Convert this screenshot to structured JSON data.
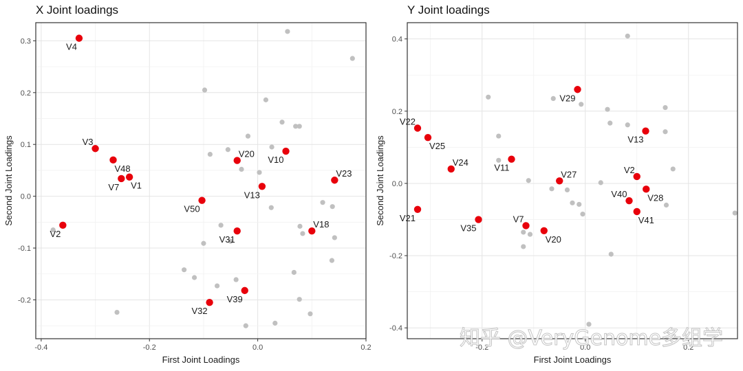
{
  "watermark": "知乎 @VeryGenome多组学",
  "chart_data": [
    {
      "type": "scatter",
      "title": "X Joint loadings",
      "xlabel": "First Joint Loadings",
      "ylabel": "Second Joint Loadings",
      "xlim": [
        -0.41,
        0.2
      ],
      "ylim": [
        -0.275,
        0.335
      ],
      "xticks": [
        -0.4,
        -0.2,
        0.0,
        0.2
      ],
      "xtick_labels": [
        "-0.4",
        "-0.2",
        "0.0",
        "0.2"
      ],
      "yticks": [
        -0.2,
        -0.1,
        0.0,
        0.1,
        0.2,
        0.3
      ],
      "ytick_labels": [
        "-0.2",
        "-0.1",
        "0.0",
        "0.1",
        "0.2",
        "0.3"
      ],
      "grid": true,
      "colors": {
        "highlight": "#e8000b",
        "other": "#c0c0c0"
      },
      "highlighted": [
        {
          "label": "V4",
          "x": -0.33,
          "y": 0.305,
          "pos": "bl"
        },
        {
          "label": "V3",
          "x": -0.3,
          "y": 0.092,
          "pos": "tl"
        },
        {
          "label": "V48",
          "x": -0.267,
          "y": 0.07,
          "pos": "br"
        },
        {
          "label": "V7",
          "x": -0.252,
          "y": 0.034,
          "pos": "bl"
        },
        {
          "label": "V1",
          "x": -0.237,
          "y": 0.037,
          "pos": "br"
        },
        {
          "label": "V2",
          "x": -0.36,
          "y": -0.056,
          "pos": "bl"
        },
        {
          "label": "V50",
          "x": -0.103,
          "y": -0.008,
          "pos": "bl"
        },
        {
          "label": "V20",
          "x": -0.038,
          "y": 0.069,
          "pos": "tr"
        },
        {
          "label": "V10",
          "x": 0.052,
          "y": 0.087,
          "pos": "bl"
        },
        {
          "label": "V13",
          "x": 0.008,
          "y": 0.019,
          "pos": "bl"
        },
        {
          "label": "V23",
          "x": 0.142,
          "y": 0.031,
          "pos": "tr"
        },
        {
          "label": "V18",
          "x": 0.1,
          "y": -0.067,
          "pos": "tr"
        },
        {
          "label": "V31",
          "x": -0.038,
          "y": -0.067,
          "pos": "bl"
        },
        {
          "label": "V39",
          "x": -0.024,
          "y": -0.182,
          "pos": "bl"
        },
        {
          "label": "V32",
          "x": -0.089,
          "y": -0.205,
          "pos": "bl"
        }
      ],
      "others": [
        [
          0.055,
          0.318
        ],
        [
          0.175,
          0.266
        ],
        [
          -0.098,
          0.205
        ],
        [
          0.015,
          0.186
        ],
        [
          0.045,
          0.143
        ],
        [
          0.07,
          0.135
        ],
        [
          0.077,
          0.135
        ],
        [
          -0.018,
          0.116
        ],
        [
          0.026,
          0.095
        ],
        [
          -0.055,
          0.09
        ],
        [
          -0.088,
          0.081
        ],
        [
          -0.03,
          0.052
        ],
        [
          0.003,
          0.046
        ],
        [
          0.12,
          -0.012
        ],
        [
          0.138,
          -0.02
        ],
        [
          0.025,
          -0.022
        ],
        [
          -0.068,
          -0.056
        ],
        [
          0.078,
          -0.058
        ],
        [
          0.083,
          -0.072
        ],
        [
          0.142,
          -0.08
        ],
        [
          -0.1,
          -0.091
        ],
        [
          -0.05,
          -0.087
        ],
        [
          0.137,
          -0.124
        ],
        [
          -0.136,
          -0.142
        ],
        [
          0.067,
          -0.147
        ],
        [
          -0.117,
          -0.157
        ],
        [
          -0.04,
          -0.161
        ],
        [
          -0.075,
          -0.173
        ],
        [
          0.077,
          -0.199
        ],
        [
          0.097,
          -0.227
        ],
        [
          -0.26,
          -0.224
        ],
        [
          0.032,
          -0.245
        ],
        [
          -0.022,
          -0.25
        ],
        [
          -0.378,
          -0.065
        ]
      ]
    },
    {
      "type": "scatter",
      "title": "Y Joint loadings",
      "xlabel": "First Joint Loadings",
      "ylabel": "Second Joint Loadings",
      "xlim": [
        -0.345,
        0.295
      ],
      "ylim": [
        -0.43,
        0.445
      ],
      "xticks": [
        -0.2,
        0.0,
        0.2
      ],
      "xtick_labels": [
        "-0.2",
        "0.0",
        "0.2"
      ],
      "yticks": [
        -0.4,
        -0.2,
        0.0,
        0.2,
        0.4
      ],
      "ytick_labels": [
        "-0.4",
        "-0.2",
        "0.0",
        "0.2",
        "0.4"
      ],
      "grid": true,
      "colors": {
        "highlight": "#e8000b",
        "other": "#c0c0c0"
      },
      "highlighted": [
        {
          "label": "V22",
          "x": -0.325,
          "y": 0.153,
          "pos": "tl"
        },
        {
          "label": "V25",
          "x": -0.305,
          "y": 0.127,
          "pos": "br"
        },
        {
          "label": "V24",
          "x": -0.26,
          "y": 0.04,
          "pos": "tr"
        },
        {
          "label": "V21",
          "x": -0.325,
          "y": -0.072,
          "pos": "bl"
        },
        {
          "label": "V11",
          "x": -0.143,
          "y": 0.067,
          "pos": "bl"
        },
        {
          "label": "V29",
          "x": -0.015,
          "y": 0.26,
          "pos": "bl"
        },
        {
          "label": "V27",
          "x": -0.05,
          "y": 0.007,
          "pos": "tr"
        },
        {
          "label": "V13",
          "x": 0.117,
          "y": 0.145,
          "pos": "bl"
        },
        {
          "label": "V2",
          "x": 0.1,
          "y": 0.019,
          "pos": "tl"
        },
        {
          "label": "V28",
          "x": 0.118,
          "y": -0.016,
          "pos": "br"
        },
        {
          "label": "V40",
          "x": 0.085,
          "y": -0.048,
          "pos": "tl"
        },
        {
          "label": "V41",
          "x": 0.1,
          "y": -0.078,
          "pos": "br"
        },
        {
          "label": "V35",
          "x": -0.207,
          "y": -0.1,
          "pos": "bl"
        },
        {
          "label": "V7",
          "x": -0.115,
          "y": -0.117,
          "pos": "tl"
        },
        {
          "label": "V20",
          "x": -0.08,
          "y": -0.131,
          "pos": "br"
        }
      ],
      "others": [
        [
          -0.188,
          0.239
        ],
        [
          -0.062,
          0.235
        ],
        [
          -0.008,
          0.219
        ],
        [
          0.082,
          0.408
        ],
        [
          0.155,
          0.21
        ],
        [
          0.043,
          0.205
        ],
        [
          0.048,
          0.167
        ],
        [
          0.082,
          0.162
        ],
        [
          0.155,
          0.143
        ],
        [
          -0.168,
          0.131
        ],
        [
          -0.168,
          0.064
        ],
        [
          0.17,
          0.04
        ],
        [
          -0.11,
          0.008
        ],
        [
          0.03,
          0.002
        ],
        [
          -0.065,
          -0.015
        ],
        [
          -0.035,
          -0.018
        ],
        [
          -0.025,
          -0.054
        ],
        [
          -0.012,
          -0.058
        ],
        [
          0.157,
          -0.06
        ],
        [
          -0.005,
          -0.085
        ],
        [
          -0.12,
          -0.135
        ],
        [
          -0.107,
          -0.141
        ],
        [
          -0.12,
          -0.175
        ],
        [
          0.05,
          -0.196
        ],
        [
          0.007,
          -0.39
        ],
        [
          0.29,
          -0.082
        ]
      ]
    }
  ]
}
